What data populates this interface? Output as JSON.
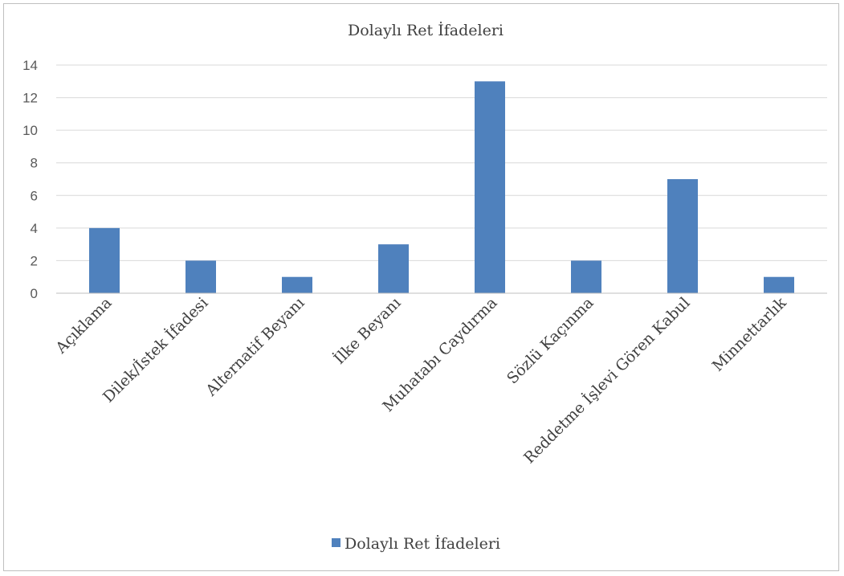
{
  "chart_data": {
    "type": "bar",
    "title": "Dolaylı Ret İfadeleri",
    "xlabel": "",
    "ylabel": "",
    "categories": [
      "Açıklama",
      "Dilek/İstek İfadesi",
      "Alternatif Beyanı",
      "İlke Beyanı",
      "Muhatabı Caydırma",
      "Sözlü Kaçınma",
      "Reddetme İşlevi Gören Kabul",
      "Minnettarlık"
    ],
    "series": [
      {
        "name": "Dolaylı Ret İfadeleri",
        "values": [
          4,
          2,
          1,
          3,
          13,
          2,
          7,
          1
        ]
      }
    ],
    "yticks": [
      "0",
      "2",
      "4",
      "6",
      "8",
      "10",
      "12",
      "14"
    ],
    "ylim": [
      0,
      14
    ],
    "grid": true,
    "legend_position": "bottom",
    "bar_color": "#4f81bd"
  }
}
